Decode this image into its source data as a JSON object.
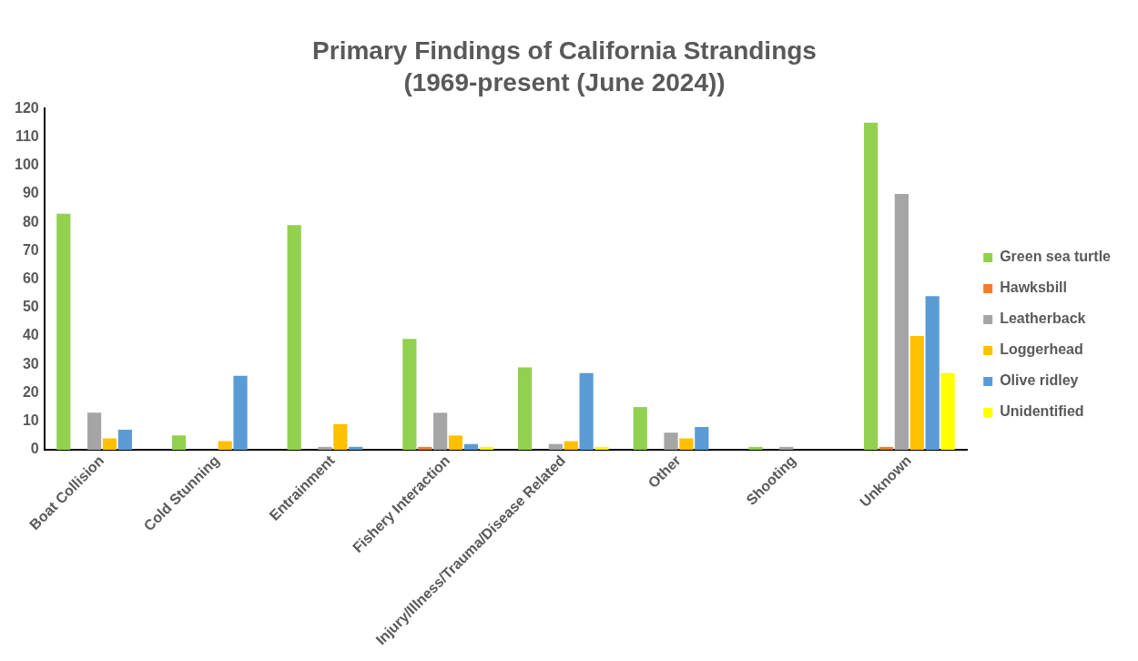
{
  "chart_data": {
    "type": "bar",
    "title": "Primary Findings of California Strandings",
    "subtitle": "(1969-present (June 2024))",
    "categories": [
      "Boat Collision",
      "Cold Stunning",
      "Entrainment",
      "Fishery Interaction",
      "Injury/Illness/Trauma/Disease Related",
      "Other",
      "Shooting",
      "Unknown"
    ],
    "series": [
      {
        "name": "Green sea turtle",
        "color": "#92d050",
        "values": [
          83,
          5,
          79,
          39,
          29,
          15,
          1,
          115
        ]
      },
      {
        "name": "Hawksbill",
        "color": "#ed7d31",
        "values": [
          0,
          0,
          0,
          1,
          0,
          0,
          0,
          1
        ]
      },
      {
        "name": "Leatherback",
        "color": "#a5a5a5",
        "values": [
          13,
          0,
          1,
          13,
          2,
          6,
          1,
          90
        ]
      },
      {
        "name": "Loggerhead",
        "color": "#ffc000",
        "values": [
          4,
          3,
          9,
          5,
          3,
          4,
          0,
          40
        ]
      },
      {
        "name": "Olive ridley",
        "color": "#5b9bd5",
        "values": [
          7,
          26,
          1,
          2,
          27,
          8,
          0,
          54
        ]
      },
      {
        "name": "Unidentified",
        "color": "#ffff00",
        "values": [
          0,
          0,
          0,
          1,
          1,
          0,
          0,
          27
        ]
      }
    ],
    "ylim": [
      0,
      120
    ],
    "yticks": [
      0,
      10,
      20,
      30,
      40,
      50,
      60,
      70,
      80,
      90,
      100,
      110,
      120
    ],
    "grid": false,
    "legend": "right"
  }
}
